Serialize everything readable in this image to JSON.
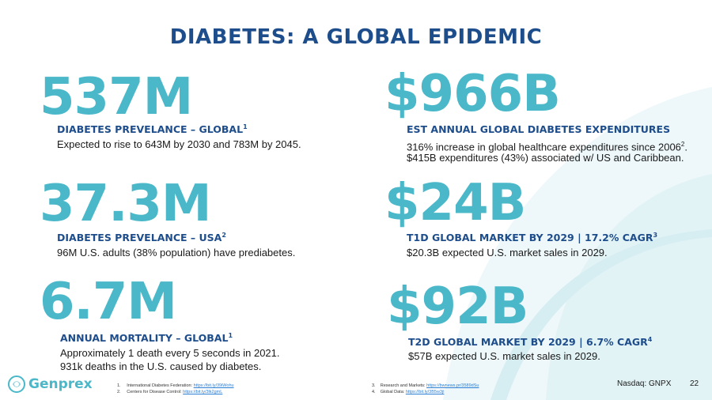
{
  "title": "DIABETES: A GLOBAL EPIDEMIC",
  "stats": [
    {
      "big": "537M",
      "heading": "DIABETES PREVELANCE – GLOBAL",
      "heading_sup": "1",
      "lines": [
        "Expected to rise to 643M by 2030 and 783M by 2045."
      ]
    },
    {
      "big": "37.3M",
      "heading": "DIABETES PREVELANCE – USA",
      "heading_sup": "2",
      "lines": [
        "96M U.S. adults (38% population) have prediabetes."
      ]
    },
    {
      "big": "6.7M",
      "heading": "ANNUAL MORTALITY – GLOBAL",
      "heading_sup": "1",
      "lines": [
        "Approximately 1 death every 5 seconds in 2021.",
        "931k deaths in the U.S. caused by diabetes."
      ]
    },
    {
      "big": "$966B",
      "heading": "EST ANNUAL GLOBAL DIABETES EXPENDITURES",
      "heading_sup": "",
      "line1_pre": "316% increase in global healthcare expenditures since 2006",
      "line1_sup": "2",
      "line1_post": ".",
      "lines": [
        "$415B expenditures (43%) associated w/ US and Caribbean."
      ]
    },
    {
      "big": "$24B",
      "heading": "T1D GLOBAL MARKET BY 2029 | 17.2% CAGR",
      "heading_sup": "3",
      "lines": [
        "$20.3B expected U.S. market sales in 2029."
      ]
    },
    {
      "big": "$92B",
      "heading": "T2D GLOBAL MARKET BY 2029 | 6.7% CAGR",
      "heading_sup": "4",
      "lines": [
        "$57B expected U.S. market sales in 2029."
      ]
    }
  ],
  "footnotes": [
    {
      "num": "1.",
      "text": "International Diabetes Federation: ",
      "link": "https://bit.ly/39iWohu"
    },
    {
      "num": "2.",
      "text": "Centers for Disease Control: ",
      "link": "https://bit.ly/3lk2gmL"
    },
    {
      "num": "3.",
      "text": "Research and Markets: ",
      "link": "https://bwnews.pr/3589dSu"
    },
    {
      "num": "4.",
      "text": "Global Data: ",
      "link": "https://bit.ly/3B5w3jl"
    }
  ],
  "logo_text": "Genprex",
  "nasdaq": "Nasdaq: GNPX",
  "page_number": "22",
  "colors": {
    "title": "#1e4d8c",
    "accent": "#4ab8c9",
    "swoosh": "#e6f4f7"
  },
  "icons": {
    "logo": "genprex-logo-icon"
  }
}
